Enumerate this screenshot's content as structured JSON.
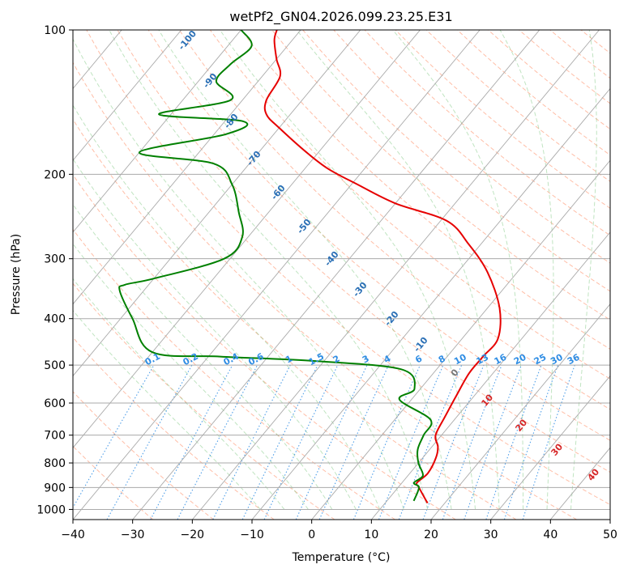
{
  "chart_data": {
    "type": "line",
    "title": "wetPf2_GN04.2026.099.23.25.E31",
    "xlabel": "Temperature (°C)",
    "ylabel": "Pressure (hPa)",
    "xlim": [
      -40,
      50
    ],
    "ylim": [
      1050,
      100
    ],
    "y_scale": "log",
    "grid": true,
    "x_ticks": [
      -40,
      -30,
      -20,
      -10,
      0,
      10,
      20,
      30,
      40,
      50
    ],
    "y_ticks": [
      100,
      200,
      300,
      400,
      500,
      600,
      700,
      800,
      900,
      1000
    ],
    "skew_isotherm_labels": [
      "-100",
      "-90",
      "-80",
      "-70",
      "-60",
      "-50",
      "-40",
      "-30",
      "-20",
      "-10"
    ],
    "moist_adiabat_labels": [
      "0",
      "10",
      "20",
      "30",
      "40"
    ],
    "mixing_ratio_labels": [
      "0.1",
      "0.2",
      "0.4",
      "0.6",
      "1",
      "1.5",
      "2",
      "3",
      "4",
      "6",
      "8",
      "10",
      "13",
      "16",
      "20",
      "25",
      "30",
      "36"
    ],
    "series": [
      {
        "color": "#e60000",
        "points": [
          [
            17.1,
            970
          ],
          [
            13.5,
            900
          ],
          [
            12.5,
            880
          ],
          [
            13.0,
            840
          ],
          [
            12.2,
            780
          ],
          [
            11.0,
            740
          ],
          [
            9.0,
            700
          ],
          [
            8.0,
            640
          ],
          [
            7.0,
            580
          ],
          [
            6.0,
            520
          ],
          [
            6.0,
            480
          ],
          [
            6.0,
            440
          ],
          [
            2.0,
            380
          ],
          [
            -5.0,
            320
          ],
          [
            -12.0,
            280
          ],
          [
            -19.0,
            250
          ],
          [
            -30.0,
            230
          ],
          [
            -39.0,
            210
          ],
          [
            -46.0,
            195
          ],
          [
            -52.0,
            180
          ],
          [
            -60.0,
            160
          ],
          [
            -64.0,
            150
          ],
          [
            -66.0,
            140
          ],
          [
            -67.0,
            125
          ],
          [
            -70.0,
            115
          ],
          [
            -73.0,
            105
          ],
          [
            -74.0,
            100
          ]
        ]
      },
      {
        "color": "#008000",
        "points": [
          [
            14.5,
            960
          ],
          [
            13.5,
            900
          ],
          [
            12.0,
            880
          ],
          [
            12.5,
            850
          ],
          [
            10.0,
            800
          ],
          [
            8.0,
            750
          ],
          [
            7.0,
            700
          ],
          [
            6.0,
            650
          ],
          [
            -2.0,
            590
          ],
          [
            -1.0,
            560
          ],
          [
            -6.0,
            510
          ],
          [
            -22.0,
            490
          ],
          [
            -38.0,
            480
          ],
          [
            -50.0,
            470
          ],
          [
            -58.0,
            400
          ],
          [
            -64.0,
            350
          ],
          [
            -64.0,
            340
          ],
          [
            -60.0,
            330
          ],
          [
            -51.0,
            300
          ],
          [
            -51.0,
            270
          ],
          [
            -55.0,
            240
          ],
          [
            -60.0,
            210
          ],
          [
            -66.0,
            190
          ],
          [
            -80.0,
            180
          ],
          [
            -68.0,
            165
          ],
          [
            -67.0,
            155
          ],
          [
            -82.0,
            150
          ],
          [
            -72.0,
            140
          ],
          [
            -77.0,
            128
          ],
          [
            -77.0,
            118
          ],
          [
            -76.0,
            108
          ],
          [
            -80.0,
            100
          ]
        ]
      }
    ]
  }
}
